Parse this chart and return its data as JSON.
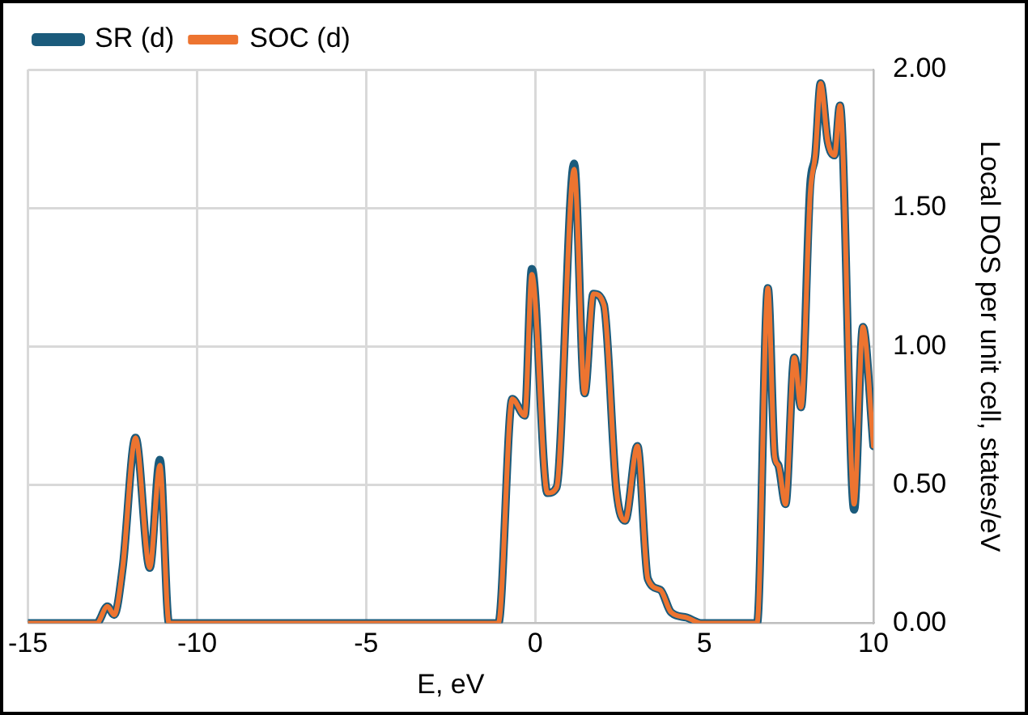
{
  "chart_data": {
    "type": "line",
    "xlabel": "E, eV",
    "ylabel": "Local DOS per unit cell, states/eV",
    "x": [
      -15,
      -13.2,
      -12.97,
      -12.65,
      -12.45,
      -12.2,
      -11.82,
      -11.4,
      -11.1,
      -10.83,
      -10.5,
      -5,
      -1.3,
      -1.09,
      -0.68,
      -0.31,
      -0.1,
      0.36,
      0.63,
      1.15,
      1.46,
      1.72,
      2.03,
      2.4,
      2.66,
      3.02,
      3.33,
      3.7,
      4.01,
      4.48,
      4.9,
      6.3,
      6.56,
      6.88,
      7.08,
      7.19,
      7.4,
      7.66,
      7.86,
      8.13,
      8.28,
      8.44,
      8.65,
      8.85,
      9.01,
      9.43,
      9.69,
      10
    ],
    "series": [
      {
        "name": "SR (d)",
        "color": "#1b5b7c",
        "values": [
          0,
          0,
          0,
          0.06,
          0.03,
          0.2,
          0.67,
          0.2,
          0.59,
          0,
          0,
          0,
          0,
          0,
          0.81,
          0.75,
          1.28,
          0.47,
          0.49,
          1.66,
          0.83,
          1.19,
          1.15,
          0.48,
          0.37,
          0.64,
          0.16,
          0.12,
          0.04,
          0.02,
          0,
          0,
          0,
          1.21,
          0.61,
          0.57,
          0.43,
          0.96,
          0.78,
          1.58,
          1.69,
          1.95,
          1.74,
          1.69,
          1.87,
          0.41,
          1.07,
          0.64
        ]
      },
      {
        "name": "SOC (d)",
        "color": "#ed7430",
        "values": [
          0,
          0,
          0,
          0.06,
          0.03,
          0.2,
          0.67,
          0.2,
          0.57,
          0,
          0,
          0,
          0,
          0,
          0.81,
          0.75,
          1.26,
          0.47,
          0.49,
          1.64,
          0.83,
          1.19,
          1.15,
          0.48,
          0.37,
          0.64,
          0.16,
          0.12,
          0.04,
          0.02,
          0,
          0,
          0,
          1.21,
          0.6,
          0.57,
          0.43,
          0.96,
          0.78,
          1.55,
          1.69,
          1.95,
          1.74,
          1.69,
          1.87,
          0.43,
          1.07,
          0.64
        ]
      }
    ],
    "xlim": [
      -15,
      10
    ],
    "xticks": [
      -15,
      -10,
      -5,
      0,
      5,
      10
    ],
    "ylim": [
      0,
      2
    ],
    "yticks": [
      {
        "value": 0,
        "label": "0.00"
      },
      {
        "value": 0.5,
        "label": "0.50"
      },
      {
        "value": 1,
        "label": "1.00"
      },
      {
        "value": 1.5,
        "label": "1.50"
      },
      {
        "value": 2,
        "label": "2.00"
      }
    ],
    "grid": true,
    "legend": "top left",
    "marker": "none",
    "line_style": "solid"
  }
}
